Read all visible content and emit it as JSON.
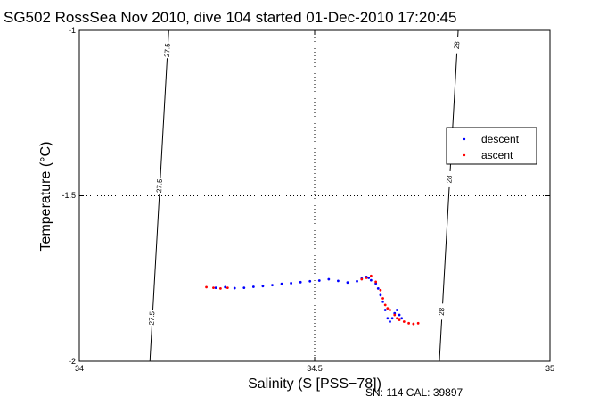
{
  "chart_data": {
    "type": "scatter",
    "title": "SG502 RossSea Nov 2010, dive 104 started 01-Dec-2010 17:20:45",
    "xlabel": "Salinity (S [PSS−78])",
    "ylabel": "Temperature (°C)",
    "xlim": [
      34,
      35
    ],
    "ylim": [
      -2,
      -1
    ],
    "xticks": [
      "34",
      "34.5",
      "35"
    ],
    "yticks": [
      "-1",
      "-1.5",
      "-2"
    ],
    "grid": "dotted at 34.5 and -1.5",
    "legend_position": "right",
    "footer": "SN: 114  CAL: 39897",
    "isopycnals": [
      {
        "label": "27.5",
        "points": [
          [
            34.19,
            -1.0
          ],
          [
            34.15,
            -2.0
          ]
        ],
        "label_positions": [
          [
            34.188,
            -1.06
          ],
          [
            34.171,
            -1.47
          ],
          [
            34.155,
            -1.87
          ]
        ]
      },
      {
        "label": "28",
        "points": [
          [
            34.805,
            -1.0
          ],
          [
            34.765,
            -2.0
          ]
        ],
        "label_positions": [
          [
            34.803,
            -1.045
          ],
          [
            34.787,
            -1.45
          ],
          [
            34.771,
            -1.85
          ]
        ]
      }
    ],
    "series": [
      {
        "name": "descent",
        "color": "#0000ff",
        "points": [
          [
            34.29,
            -1.778
          ],
          [
            34.31,
            -1.776
          ],
          [
            34.33,
            -1.779
          ],
          [
            34.35,
            -1.778
          ],
          [
            34.37,
            -1.775
          ],
          [
            34.39,
            -1.773
          ],
          [
            34.41,
            -1.77
          ],
          [
            34.43,
            -1.766
          ],
          [
            34.45,
            -1.764
          ],
          [
            34.47,
            -1.761
          ],
          [
            34.49,
            -1.758
          ],
          [
            34.51,
            -1.756
          ],
          [
            34.53,
            -1.752
          ],
          [
            34.55,
            -1.757
          ],
          [
            34.57,
            -1.762
          ],
          [
            34.59,
            -1.758
          ],
          [
            34.6,
            -1.75
          ],
          [
            34.61,
            -1.745
          ],
          [
            34.615,
            -1.748
          ],
          [
            34.62,
            -1.755
          ],
          [
            34.63,
            -1.765
          ],
          [
            34.635,
            -1.78
          ],
          [
            34.64,
            -1.8
          ],
          [
            34.645,
            -1.82
          ],
          [
            34.65,
            -1.845
          ],
          [
            34.655,
            -1.87
          ],
          [
            34.66,
            -1.88
          ],
          [
            34.665,
            -1.87
          ],
          [
            34.67,
            -1.855
          ],
          [
            34.675,
            -1.845
          ],
          [
            34.68,
            -1.86
          ],
          [
            34.685,
            -1.87
          ]
        ]
      },
      {
        "name": "ascent",
        "color": "#ff0000",
        "points": [
          [
            34.27,
            -1.776
          ],
          [
            34.285,
            -1.778
          ],
          [
            34.3,
            -1.78
          ],
          [
            34.315,
            -1.778
          ],
          [
            34.6,
            -1.752
          ],
          [
            34.61,
            -1.748
          ],
          [
            34.62,
            -1.742
          ],
          [
            34.63,
            -1.76
          ],
          [
            34.64,
            -1.785
          ],
          [
            34.645,
            -1.81
          ],
          [
            34.65,
            -1.83
          ],
          [
            34.655,
            -1.84
          ],
          [
            34.66,
            -1.845
          ],
          [
            34.67,
            -1.86
          ],
          [
            34.675,
            -1.87
          ],
          [
            34.68,
            -1.875
          ],
          [
            34.69,
            -1.88
          ],
          [
            34.7,
            -1.885
          ],
          [
            34.71,
            -1.887
          ],
          [
            34.72,
            -1.885
          ]
        ]
      }
    ]
  }
}
